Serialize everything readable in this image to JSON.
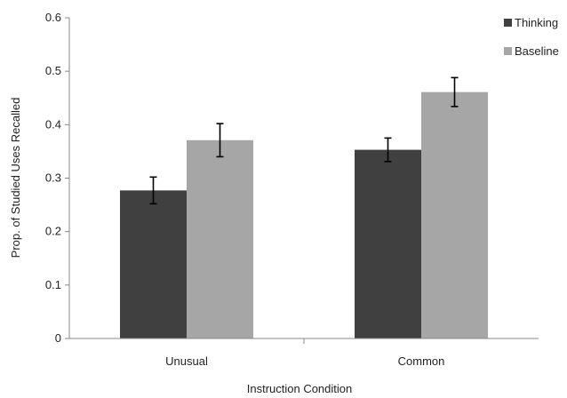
{
  "chart_data": {
    "type": "bar",
    "title": "",
    "xlabel": "Instruction  Condition",
    "ylabel": "Prop. of Studied Uses Recalled",
    "categories": [
      "Unusual",
      "Common"
    ],
    "ylim": [
      0,
      0.6
    ],
    "yticks": [
      "0",
      "0.1",
      "0.2",
      "0.3",
      "0.4",
      "0.5",
      "0.6"
    ],
    "grid": false,
    "legend_position": "top-right",
    "series": [
      {
        "name": "Thinking",
        "color": "#404040",
        "values": [
          0.277,
          0.353
        ],
        "error": [
          0.025,
          0.022
        ]
      },
      {
        "name": "Baseline",
        "color": "#a6a6a6",
        "values": [
          0.371,
          0.461
        ],
        "error": [
          0.031,
          0.027
        ]
      }
    ]
  }
}
